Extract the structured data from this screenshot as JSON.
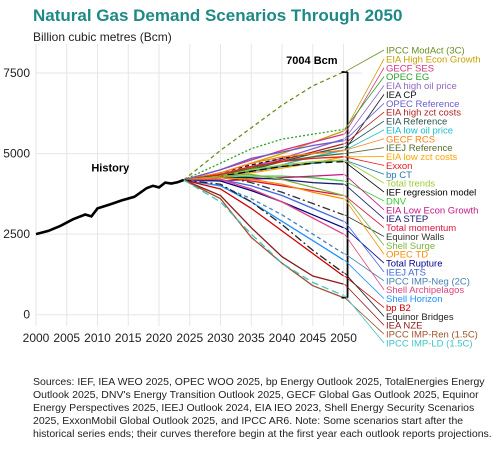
{
  "chart_data": {
    "type": "line",
    "title": "Natural Gas Demand Scenarios Through 2050",
    "ylabel": "Billion cubic metres (Bcm)",
    "xlabel": "",
    "xlim": [
      2000,
      2053
    ],
    "ylim": [
      -350,
      8400
    ],
    "x_ticks": [
      "2000",
      "2005",
      "2010",
      "2015",
      "2020",
      "2025",
      "2030",
      "2035",
      "2040",
      "2045",
      "2050"
    ],
    "y_ticks": [
      "0",
      "2500",
      "5000",
      "7500"
    ],
    "grid": true,
    "history_label": "History",
    "history": {
      "x": [
        2000,
        2002,
        2004,
        2006,
        2008,
        2009,
        2010,
        2012,
        2014,
        2016,
        2018,
        2019,
        2020,
        2021,
        2022,
        2023,
        2024
      ],
      "y": [
        2500,
        2600,
        2760,
        2960,
        3110,
        3050,
        3300,
        3420,
        3550,
        3660,
        3930,
        4000,
        3950,
        4100,
        4070,
        4110,
        4180
      ]
    },
    "range_annotation": {
      "label": "7004 Bcm",
      "max_value": 7530,
      "min_value": 530
    },
    "scenarios": [
      {
        "name": "IPCC ModAct (3C)",
        "color": "#6b8e23",
        "dash": "4,3",
        "start": 2024,
        "values": [
          4180,
          5100,
          5800,
          6500,
          7100,
          7530
        ]
      },
      {
        "name": "EIA High Econ Growth",
        "color": "#c8a000",
        "dash": "",
        "start": 2024,
        "values": [
          4180,
          4400,
          4700,
          5000,
          5350,
          5700
        ]
      },
      {
        "name": "GECF SES",
        "color": "#d63384",
        "dash": "",
        "start": 2024,
        "values": [
          4180,
          4500,
          4800,
          5100,
          5350,
          5600
        ]
      },
      {
        "name": "OPEC EG",
        "color": "#2ca02c",
        "dash": "2,2",
        "start": 2024,
        "values": [
          4180,
          4700,
          5150,
          5450,
          5600,
          5750
        ]
      },
      {
        "name": "EIA high oil price",
        "color": "#9467bd",
        "dash": "",
        "start": 2024,
        "values": [
          4180,
          4350,
          4600,
          4850,
          5150,
          5450
        ]
      },
      {
        "name": "IEA CP",
        "color": "#111111",
        "dash": "4,3",
        "start": 2024,
        "values": [
          4180,
          4400,
          4650,
          4850,
          5000,
          5100
        ]
      },
      {
        "name": "OPEC Reference",
        "color": "#6a5acd",
        "dash": "",
        "start": 2024,
        "values": [
          4180,
          4500,
          4850,
          5050,
          5250,
          5400
        ]
      },
      {
        "name": "EIA high zct costs",
        "color": "#b22222",
        "dash": "",
        "start": 2024,
        "values": [
          4180,
          4300,
          4550,
          4800,
          5050,
          5300
        ]
      },
      {
        "name": "EIA Reference",
        "color": "#2f4f4f",
        "dash": "",
        "start": 2024,
        "values": [
          4180,
          4280,
          4500,
          4750,
          5000,
          5200
        ]
      },
      {
        "name": "EIA low oil price",
        "color": "#17becf",
        "dash": "",
        "start": 2024,
        "values": [
          4180,
          4250,
          4450,
          4650,
          4900,
          5100
        ]
      },
      {
        "name": "GECF RCS",
        "color": "#ff7f0e",
        "dash": "",
        "start": 2024,
        "values": [
          4180,
          4400,
          4700,
          4900,
          5000,
          5100
        ]
      },
      {
        "name": "IEEJ Reference",
        "color": "#556b2f",
        "dash": "",
        "start": 2024,
        "values": [
          4180,
          4350,
          4550,
          4750,
          4900,
          5000
        ]
      },
      {
        "name": "EIA low zct costs",
        "color": "#ffa500",
        "dash": "",
        "start": 2024,
        "values": [
          4180,
          4250,
          4400,
          4550,
          4700,
          4900
        ]
      },
      {
        "name": "Exxon",
        "color": "#e41a1c",
        "dash": "",
        "start": 2024,
        "values": [
          4180,
          4350,
          4600,
          4750,
          4850,
          4900
        ]
      },
      {
        "name": "bp CT",
        "color": "#1f77b4",
        "dash": "",
        "start": 2024,
        "values": [
          4180,
          4300,
          4450,
          4600,
          4700,
          4800
        ]
      },
      {
        "name": "Total trends",
        "color": "#9acd32",
        "dash": "",
        "start": 2024,
        "values": [
          4180,
          4300,
          4500,
          4650,
          4750,
          4800
        ]
      },
      {
        "name": "IEF regression model",
        "color": "#000000",
        "dash": "7,4",
        "start": 2024,
        "values": [
          4180,
          4300,
          4450,
          4600,
          4700,
          4750
        ]
      },
      {
        "name": "DNV",
        "color": "#32cd32",
        "dash": "",
        "start": 2024,
        "values": [
          4180,
          4250,
          4300,
          4300,
          4250,
          4150
        ]
      },
      {
        "name": "EIA Low Econ Growth",
        "color": "#c71585",
        "dash": "",
        "start": 2024,
        "values": [
          4180,
          4150,
          4200,
          4250,
          4300,
          4350
        ]
      },
      {
        "name": "IEA STEP",
        "color": "#191970",
        "dash": "",
        "start": 2024,
        "values": [
          4180,
          4250,
          4250,
          4200,
          4100,
          4050
        ]
      },
      {
        "name": "Total momentum",
        "color": "#dc143c",
        "dash": "",
        "start": 2024,
        "values": [
          4180,
          4250,
          4150,
          4000,
          3850,
          3700
        ]
      },
      {
        "name": "Equinor Walls",
        "color": "#333333",
        "dash": "8,3,2,3",
        "start": 2024,
        "values": [
          4180,
          4300,
          4100,
          3800,
          3450,
          3100
        ]
      },
      {
        "name": "Shell Surge",
        "color": "#7cb342",
        "dash": "",
        "start": 2024,
        "values": [
          4180,
          4300,
          4350,
          4200,
          3950,
          3700
        ]
      },
      {
        "name": "OPEC TD",
        "color": "#ff8c00",
        "dash": "",
        "start": 2024,
        "values": [
          4180,
          4250,
          4200,
          4050,
          3800,
          3600
        ]
      },
      {
        "name": "Total Rupture",
        "color": "#00008b",
        "dash": "",
        "start": 2024,
        "values": [
          4180,
          4150,
          3850,
          3500,
          3100,
          2700
        ]
      },
      {
        "name": "IEEJ ATS",
        "color": "#4169e1",
        "dash": "",
        "start": 2024,
        "values": [
          4180,
          4200,
          4000,
          3700,
          3300,
          2900
        ]
      },
      {
        "name": "IPCC IMP-Neg (2C)",
        "color": "#4682b4",
        "dash": "4,3",
        "start": 2024,
        "values": [
          4180,
          4000,
          3600,
          3100,
          2500,
          1900
        ]
      },
      {
        "name": "Shell Archipelagos",
        "color": "#e0457b",
        "dash": "",
        "start": 2024,
        "values": [
          4180,
          4200,
          3900,
          3500,
          3000,
          2500
        ]
      },
      {
        "name": "Shell Horizon",
        "color": "#1e90ff",
        "dash": "",
        "start": 2024,
        "values": [
          4180,
          4000,
          3500,
          2900,
          2300,
          1700
        ]
      },
      {
        "name": "bp B2",
        "color": "#cc0000",
        "dash": "",
        "start": 2024,
        "values": [
          4180,
          3900,
          3300,
          2600,
          1900,
          1200
        ]
      },
      {
        "name": "Equinor Bridges",
        "color": "#222222",
        "dash": "8,3,2,3",
        "start": 2024,
        "values": [
          4180,
          4050,
          3500,
          2800,
          2000,
          1300
        ]
      },
      {
        "name": "IEA NZE",
        "color": "#8b1a1a",
        "dash": "",
        "start": 2024,
        "values": [
          4180,
          3700,
          2700,
          1800,
          1200,
          950
        ]
      },
      {
        "name": "IPCC IMP-Ren (1.5C)",
        "color": "#a0522d",
        "dash": "",
        "start": 2024,
        "values": [
          4180,
          3600,
          2400,
          1600,
          900,
          530
        ]
      },
      {
        "name": "IPCC IMP-LD (1.5C)",
        "color": "#40c4c4",
        "dash": "7,4",
        "start": 2024,
        "values": [
          4180,
          3500,
          2500,
          1600,
          1000,
          600
        ]
      }
    ]
  },
  "source_note": "Sources: IEF, IEA WEO 2025, OPEC WOO 2025, bp Energy Outlook 2025, TotalEnergies Energy Outlook 2025, DNV's Energy Transition Outlook 2025, GECF Global Gas Outlook 2025, Equinor Energy Perspectives 2025, IEEJ Outlook 2024, EIA IEO 2023, Shell Energy Security Scenarios 2025, ExxonMobil Global Outlook 2025, and IPCC AR6. Note: Some scenarios start after the historical series ends; their curves therefore begin at the first year each outlook reports projections."
}
